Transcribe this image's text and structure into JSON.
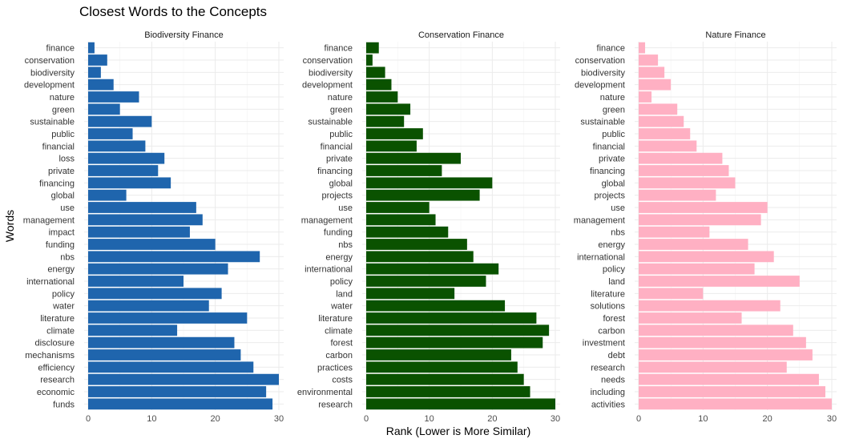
{
  "chart_data": {
    "type": "bar",
    "orientation": "horizontal",
    "title": "Closest Words to the Concepts",
    "xlabel": "Rank (Lower is More Similar)",
    "ylabel": "Words",
    "xlim": [
      0,
      30
    ],
    "xticks": [
      0,
      10,
      20,
      30
    ],
    "grid": true,
    "legend": "none",
    "panels": [
      {
        "name": "Biodiversity Finance",
        "color": "#1f65ad",
        "categories": [
          "finance",
          "conservation",
          "biodiversity",
          "development",
          "nature",
          "green",
          "sustainable",
          "public",
          "financial",
          "loss",
          "private",
          "financing",
          "global",
          "use",
          "management",
          "impact",
          "funding",
          "nbs",
          "energy",
          "international",
          "policy",
          "water",
          "literature",
          "climate",
          "disclosure",
          "mechanisms",
          "efficiency",
          "research",
          "economic",
          "funds"
        ],
        "values": [
          1,
          3,
          2,
          4,
          8,
          5,
          10,
          7,
          9,
          12,
          11,
          13,
          6,
          17,
          18,
          16,
          20,
          27,
          22,
          15,
          21,
          19,
          25,
          14,
          23,
          24,
          26,
          30,
          28,
          29
        ]
      },
      {
        "name": "Conservation Finance",
        "color": "#0a5200",
        "categories": [
          "finance",
          "conservation",
          "biodiversity",
          "development",
          "nature",
          "green",
          "sustainable",
          "public",
          "financial",
          "private",
          "financing",
          "global",
          "projects",
          "use",
          "management",
          "funding",
          "nbs",
          "energy",
          "international",
          "policy",
          "land",
          "water",
          "literature",
          "climate",
          "forest",
          "carbon",
          "practices",
          "costs",
          "environmental",
          "research"
        ],
        "values": [
          2,
          1,
          3,
          4,
          5,
          7,
          6,
          9,
          8,
          15,
          12,
          20,
          18,
          10,
          11,
          13,
          16,
          17,
          21,
          19,
          14,
          22,
          27,
          29,
          28,
          23,
          24,
          25,
          26,
          30
        ]
      },
      {
        "name": "Nature Finance",
        "color": "#ffb0c3",
        "categories": [
          "finance",
          "conservation",
          "biodiversity",
          "development",
          "nature",
          "green",
          "sustainable",
          "public",
          "financial",
          "private",
          "financing",
          "global",
          "projects",
          "use",
          "management",
          "nbs",
          "energy",
          "international",
          "policy",
          "land",
          "literature",
          "solutions",
          "forest",
          "carbon",
          "investment",
          "debt",
          "research",
          "needs",
          "including",
          "activities"
        ],
        "values": [
          1,
          3,
          4,
          5,
          2,
          6,
          7,
          8,
          9,
          13,
          14,
          15,
          12,
          20,
          19,
          11,
          17,
          21,
          18,
          25,
          10,
          22,
          16,
          24,
          26,
          27,
          23,
          28,
          29,
          30
        ]
      }
    ]
  }
}
